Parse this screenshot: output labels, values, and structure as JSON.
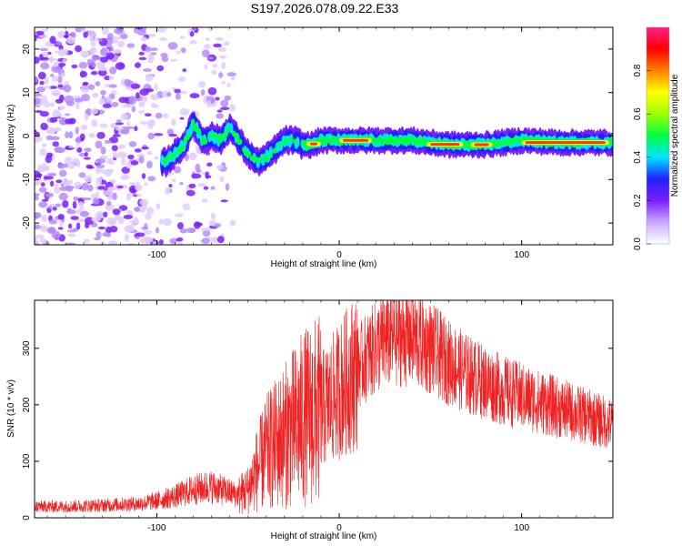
{
  "title": "S197.2026.078.09.22.E33",
  "chart_data": [
    {
      "type": "heatmap",
      "xlabel": "Height of straight line (km)",
      "ylabel": "Frequency (Hz)",
      "xlim": [
        -167,
        150
      ],
      "ylim": [
        -25,
        25
      ],
      "xticks": [
        -100,
        0,
        100
      ],
      "yticks": [
        -20,
        -10,
        0,
        10,
        20
      ],
      "colorbar": {
        "label": "Normalized spectral amplitude",
        "range": [
          0,
          1
        ],
        "ticks": [
          0.0,
          0.2,
          0.4,
          0.6,
          0.8
        ],
        "colors": [
          "#ffffff",
          "#c9a8ff",
          "#7b1fff",
          "#2020ff",
          "#00e5ff",
          "#00ff40",
          "#a0ff00",
          "#ffff00",
          "#ff8000",
          "#ff0000",
          "#ff1e8c"
        ]
      },
      "ridge": {
        "height_km": [
          -95,
          -85,
          -80,
          -75,
          -70,
          -65,
          -60,
          -55,
          -50,
          -45,
          -40,
          -35,
          -30,
          -25,
          -20,
          -15,
          -10,
          -5,
          0,
          10,
          20,
          40,
          60,
          80,
          100,
          120,
          150
        ],
        "frequency_hz": [
          -6,
          -2,
          3,
          -1,
          0,
          -1,
          2,
          -1,
          -4,
          -6,
          -5,
          -3,
          -1,
          -1,
          -2,
          -2,
          -1,
          -1,
          -1,
          -1,
          -1,
          -1,
          -2,
          -2,
          -1,
          -1.5,
          -1.5
        ]
      }
    },
    {
      "type": "line",
      "xlabel": "Height of straight line (km)",
      "ylabel": "SNR (10 * v/v)",
      "xlim": [
        -167,
        150
      ],
      "ylim": [
        0,
        385
      ],
      "xticks": [
        -100,
        0,
        100
      ],
      "yticks": [
        0,
        100,
        200,
        300
      ],
      "line_color": "#ee2222",
      "series": [
        {
          "name": "SNR",
          "x": [
            -167,
            -150,
            -130,
            -110,
            -100,
            -90,
            -80,
            -70,
            -60,
            -55,
            -50,
            -45,
            -40,
            -35,
            -30,
            -25,
            -20,
            -15,
            -10,
            -5,
            0,
            5,
            10,
            15,
            20,
            25,
            30,
            35,
            40,
            45,
            50,
            60,
            70,
            80,
            90,
            100,
            110,
            120,
            130,
            140,
            150
          ],
          "values": [
            20,
            20,
            22,
            25,
            30,
            38,
            50,
            55,
            45,
            40,
            50,
            85,
            115,
            130,
            145,
            160,
            175,
            185,
            190,
            205,
            225,
            245,
            265,
            285,
            300,
            315,
            320,
            320,
            320,
            310,
            300,
            275,
            255,
            240,
            225,
            215,
            205,
            195,
            185,
            175,
            165
          ]
        }
      ]
    }
  ]
}
